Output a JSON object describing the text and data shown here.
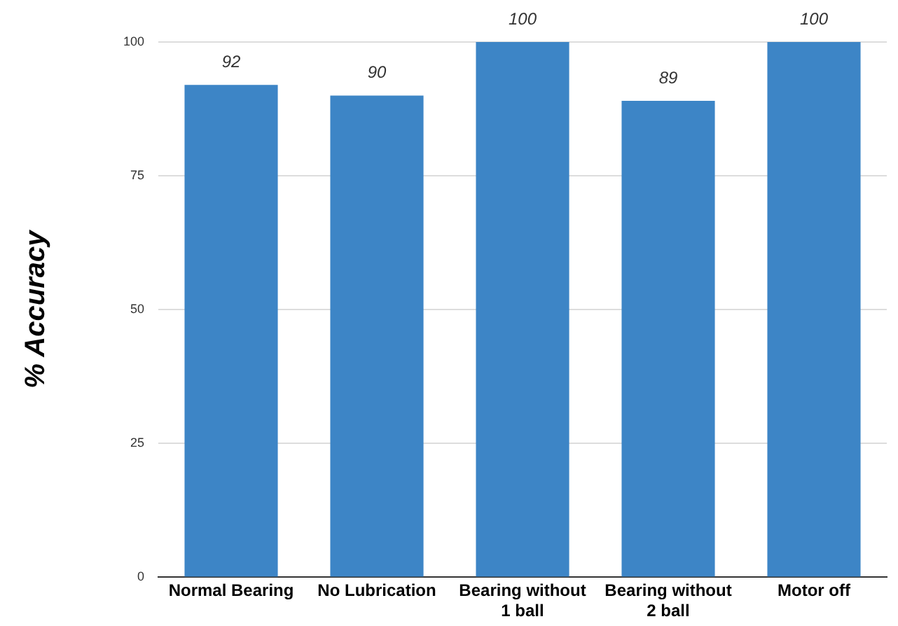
{
  "chart_data": {
    "type": "bar",
    "ylabel": "% Accuracy",
    "categories": [
      "Normal Bearing",
      "No Lubrication",
      "Bearing without 1 ball",
      "Bearing without 2 ball",
      "Motor off"
    ],
    "values": [
      92,
      90,
      100,
      89,
      100
    ],
    "color": "#3d85c6",
    "ylim": [
      0,
      100
    ],
    "yticks": [
      0,
      25,
      50,
      75,
      100
    ],
    "grid": "y",
    "data_labels": true,
    "legend": false
  }
}
